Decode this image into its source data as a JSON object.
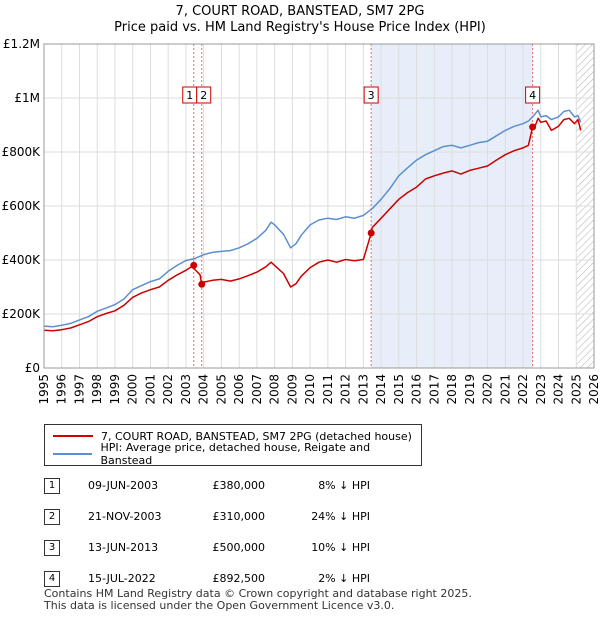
{
  "chart_data": {
    "type": "line",
    "title": "7, COURT ROAD, BANSTEAD, SM7 2PG",
    "subtitle": "Price paid vs. HM Land Registry's House Price Index (HPI)",
    "xlim": [
      1995,
      2026
    ],
    "ylim": [
      0,
      1200000
    ],
    "y_ticks": [
      0,
      200000,
      400000,
      600000,
      800000,
      1000000,
      1200000
    ],
    "y_tick_labels": [
      "£0",
      "£200K",
      "£400K",
      "£600K",
      "£800K",
      "£1M",
      "£1.2M"
    ],
    "x_ticks": [
      "1995",
      "1996",
      "1997",
      "1998",
      "1999",
      "2000",
      "2001",
      "2002",
      "2003",
      "2004",
      "2005",
      "2006",
      "2007",
      "2008",
      "2009",
      "2010",
      "2011",
      "2012",
      "2013",
      "2014",
      "2015",
      "2016",
      "2017",
      "2018",
      "2019",
      "2020",
      "2021",
      "2022",
      "2023",
      "2024",
      "2025",
      "2026"
    ],
    "grid": true,
    "series": [
      {
        "name": "7, COURT ROAD, BANSTEAD, SM7 2PG (detached house)",
        "color": "#cc0000",
        "x": [
          1995.0,
          1995.5,
          1996.0,
          1996.5,
          1997.0,
          1997.5,
          1998.0,
          1998.5,
          1999.0,
          1999.5,
          2000.0,
          2000.5,
          2001.0,
          2001.5,
          2002.0,
          2002.5,
          2003.0,
          2003.44,
          2003.5,
          2003.8,
          2003.89,
          2004.0,
          2004.5,
          2005.0,
          2005.5,
          2006.0,
          2006.5,
          2007.0,
          2007.5,
          2007.8,
          2008.0,
          2008.5,
          2008.9,
          2009.2,
          2009.5,
          2010.0,
          2010.5,
          2011.0,
          2011.5,
          2012.0,
          2012.5,
          2013.0,
          2013.44,
          2013.5,
          2014.0,
          2014.5,
          2015.0,
          2015.5,
          2016.0,
          2016.5,
          2017.0,
          2017.5,
          2018.0,
          2018.5,
          2019.0,
          2019.5,
          2020.0,
          2020.5,
          2021.0,
          2021.5,
          2022.0,
          2022.3,
          2022.54,
          2022.7,
          2022.85,
          2023.0,
          2023.3,
          2023.6,
          2024.0,
          2024.3,
          2024.6,
          2024.9,
          2025.1,
          2025.25
        ],
        "values": [
          140000,
          138000,
          142000,
          148000,
          160000,
          172000,
          190000,
          202000,
          212000,
          232000,
          262000,
          278000,
          290000,
          300000,
          325000,
          345000,
          362000,
          380000,
          365000,
          345000,
          310000,
          318000,
          325000,
          328000,
          322000,
          330000,
          342000,
          355000,
          375000,
          392000,
          380000,
          350000,
          300000,
          312000,
          340000,
          372000,
          392000,
          400000,
          392000,
          402000,
          397000,
          402000,
          500000,
          520000,
          555000,
          590000,
          625000,
          650000,
          670000,
          700000,
          712000,
          722000,
          730000,
          718000,
          732000,
          740000,
          748000,
          770000,
          790000,
          805000,
          815000,
          825000,
          892500,
          900000,
          925000,
          910000,
          915000,
          880000,
          895000,
          920000,
          925000,
          905000,
          920000,
          880000
        ]
      },
      {
        "name": "HPI: Average price, detached house, Reigate and Banstead",
        "color": "#5b8fd0",
        "x": [
          1995.0,
          1995.5,
          1996.0,
          1996.5,
          1997.0,
          1997.5,
          1998.0,
          1998.5,
          1999.0,
          1999.5,
          2000.0,
          2000.5,
          2001.0,
          2001.5,
          2002.0,
          2002.5,
          2003.0,
          2003.5,
          2004.0,
          2004.5,
          2005.0,
          2005.5,
          2006.0,
          2006.5,
          2007.0,
          2007.5,
          2007.8,
          2008.0,
          2008.5,
          2008.9,
          2009.2,
          2009.5,
          2010.0,
          2010.5,
          2011.0,
          2011.5,
          2012.0,
          2012.5,
          2013.0,
          2013.5,
          2014.0,
          2014.5,
          2015.0,
          2015.5,
          2016.0,
          2016.5,
          2017.0,
          2017.5,
          2018.0,
          2018.5,
          2019.0,
          2019.5,
          2020.0,
          2020.5,
          2021.0,
          2021.5,
          2022.0,
          2022.3,
          2022.6,
          2022.85,
          2023.0,
          2023.3,
          2023.6,
          2024.0,
          2024.3,
          2024.6,
          2024.9,
          2025.1,
          2025.25
        ],
        "values": [
          155000,
          153000,
          158000,
          165000,
          178000,
          190000,
          210000,
          222000,
          235000,
          255000,
          290000,
          305000,
          320000,
          330000,
          358000,
          380000,
          398000,
          405000,
          420000,
          428000,
          432000,
          435000,
          445000,
          460000,
          480000,
          510000,
          540000,
          530000,
          495000,
          445000,
          460000,
          492000,
          530000,
          548000,
          555000,
          550000,
          560000,
          555000,
          565000,
          590000,
          625000,
          665000,
          712000,
          742000,
          770000,
          790000,
          805000,
          820000,
          825000,
          815000,
          825000,
          835000,
          840000,
          860000,
          880000,
          895000,
          905000,
          915000,
          935000,
          955000,
          930000,
          935000,
          920000,
          930000,
          950000,
          955000,
          930000,
          935000,
          910000
        ]
      }
    ],
    "sales": [
      {
        "label": "1",
        "x": 2003.44,
        "value": 380000
      },
      {
        "label": "2",
        "x": 2003.89,
        "value": 310000
      },
      {
        "label": "3",
        "x": 2013.44,
        "value": 500000
      },
      {
        "label": "4",
        "x": 2022.54,
        "value": 892500
      }
    ],
    "shaded_range": [
      2013.44,
      2022.54
    ],
    "hatched_from": 2025.0
  },
  "legend": {
    "items": [
      {
        "label": "7, COURT ROAD, BANSTEAD, SM7 2PG (detached house)",
        "color": "#cc0000"
      },
      {
        "label": "HPI: Average price, detached house, Reigate and Banstead",
        "color": "#5b8fd0"
      }
    ]
  },
  "sales_table": [
    {
      "num": "1",
      "date": "09-JUN-2003",
      "price": "£380,000",
      "hpi": "8% ↓ HPI"
    },
    {
      "num": "2",
      "date": "21-NOV-2003",
      "price": "£310,000",
      "hpi": "24% ↓ HPI"
    },
    {
      "num": "3",
      "date": "13-JUN-2013",
      "price": "£500,000",
      "hpi": "10% ↓ HPI"
    },
    {
      "num": "4",
      "date": "15-JUL-2022",
      "price": "£892,500",
      "hpi": "2% ↓ HPI"
    }
  ],
  "footer": {
    "line1": "Contains HM Land Registry data © Crown copyright and database right 2025.",
    "line2": "This data is licensed under the Open Government Licence v3.0."
  }
}
